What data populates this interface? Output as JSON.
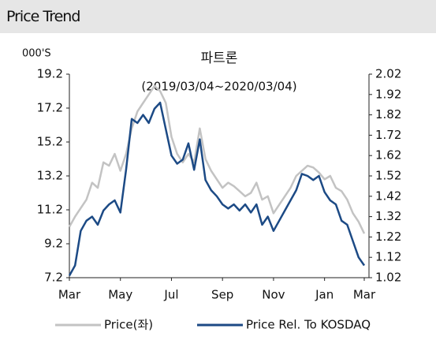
{
  "header": {
    "title": "Price Trend"
  },
  "chart_data": {
    "type": "line",
    "title": "파트론",
    "subtitle": "(2019/03/04~2020/03/04)",
    "y_label": "000'S",
    "categories": [
      "Mar",
      null,
      null,
      null,
      null,
      null,
      null,
      null,
      null,
      "May",
      null,
      null,
      null,
      null,
      null,
      null,
      null,
      null,
      "Jul",
      null,
      null,
      null,
      null,
      null,
      null,
      null,
      null,
      "Sep",
      null,
      null,
      null,
      null,
      null,
      null,
      null,
      null,
      "Nov",
      null,
      null,
      null,
      null,
      null,
      null,
      null,
      null,
      "Jan",
      null,
      null,
      null,
      null,
      null,
      null,
      "Mar"
    ],
    "series": [
      {
        "name": "Price(좌)",
        "color": "#c3c3c3",
        "values": [
          10.2,
          10.8,
          11.3,
          11.8,
          12.8,
          12.5,
          14.0,
          13.8,
          14.5,
          13.5,
          14.5,
          16.0,
          17.0,
          17.5,
          18.0,
          18.5,
          18.2,
          17.5,
          15.5,
          14.5,
          14.0,
          14.5,
          14.0,
          16.0,
          14.2,
          13.5,
          13.0,
          12.5,
          12.8,
          12.6,
          12.3,
          12.0,
          12.2,
          12.8,
          11.8,
          12.0,
          11.0,
          11.5,
          12.0,
          12.5,
          13.2,
          13.5,
          13.8,
          13.7,
          13.4,
          13.0,
          13.2,
          12.5,
          12.3,
          11.8,
          11.0,
          10.5,
          9.8
        ]
      },
      {
        "name": "Price Rel. To KOSDAQ",
        "color": "#1c4a85",
        "axis": "y2",
        "values": [
          1.03,
          1.08,
          1.25,
          1.3,
          1.32,
          1.28,
          1.35,
          1.38,
          1.4,
          1.34,
          1.55,
          1.8,
          1.78,
          1.82,
          1.78,
          1.85,
          1.88,
          1.75,
          1.62,
          1.58,
          1.6,
          1.68,
          1.55,
          1.7,
          1.5,
          1.45,
          1.42,
          1.38,
          1.36,
          1.38,
          1.35,
          1.38,
          1.34,
          1.38,
          1.28,
          1.32,
          1.25,
          1.3,
          1.35,
          1.4,
          1.45,
          1.53,
          1.52,
          1.5,
          1.52,
          1.44,
          1.4,
          1.38,
          1.3,
          1.28,
          1.2,
          1.12,
          1.08
        ]
      }
    ],
    "ylim": [
      7.2,
      19.2
    ],
    "yticks": [
      7.2,
      9.2,
      11.2,
      13.2,
      15.2,
      17.2,
      19.2
    ],
    "y2lim": [
      1.02,
      2.02
    ],
    "y2ticks": [
      1.02,
      1.12,
      1.22,
      1.32,
      1.42,
      1.52,
      1.62,
      1.72,
      1.82,
      1.92,
      2.02
    ]
  }
}
